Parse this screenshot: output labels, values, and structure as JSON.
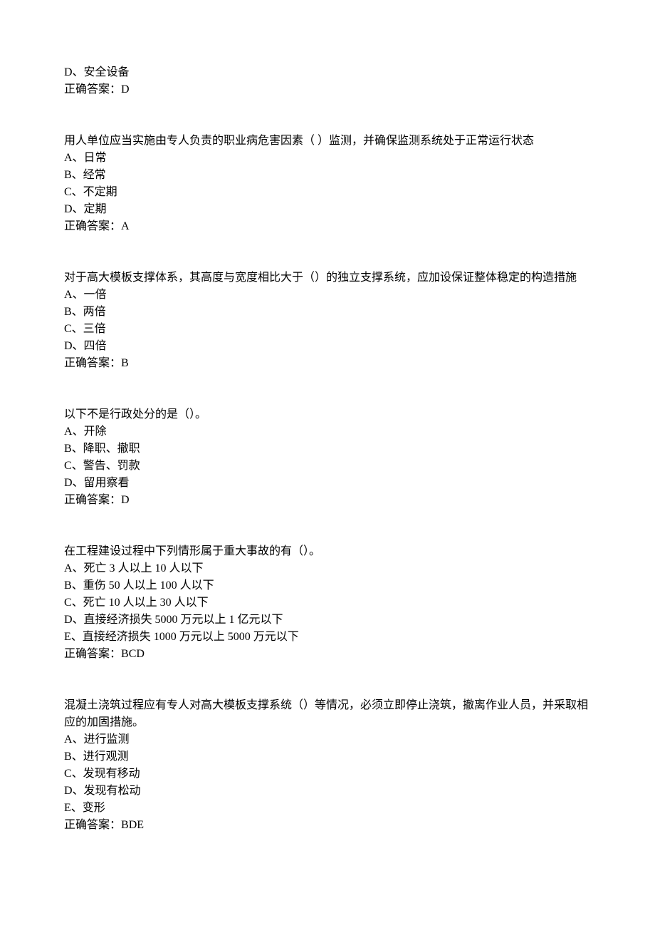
{
  "fragment": {
    "options": [
      "D、安全设备"
    ],
    "answer_label": "正确答案：",
    "answer_value": "D"
  },
  "questions": [
    {
      "stem": "用人单位应当实施由专人负责的职业病危害因素（ ）监测，并确保监测系统处于正常运行状态",
      "options": [
        "A、日常",
        "B、经常",
        "C、不定期",
        "D、定期"
      ],
      "answer_label": "正确答案：",
      "answer_value": "A"
    },
    {
      "stem": "对于高大模板支撑体系，其高度与宽度相比大于（）的独立支撑系统，应加设保证整体稳定的构造措施",
      "options": [
        "A、一倍",
        "B、两倍",
        "C、三倍",
        "D、四倍"
      ],
      "answer_label": "正确答案：",
      "answer_value": "B"
    },
    {
      "stem": "以下不是行政处分的是（）。",
      "options": [
        "A、开除",
        "B、降职、撤职",
        "C、警告、罚款",
        "D、留用察看"
      ],
      "answer_label": "正确答案：",
      "answer_value": "D"
    },
    {
      "stem": "在工程建设过程中下列情形属于重大事故的有（）。",
      "options": [
        "A、死亡 3 人以上 10 人以下",
        "B、重伤 50 人以上 100 人以下",
        "C、死亡 10 人以上 30 人以下",
        "D、直接经济损失 5000 万元以上 1 亿元以下",
        "E、直接经济损失 1000 万元以上 5000 万元以下"
      ],
      "answer_label": "正确答案：",
      "answer_value": "BCD"
    },
    {
      "stem": "混凝土浇筑过程应有专人对高大模板支撑系统（）等情况，必须立即停止浇筑，撤离作业人员，并采取相应的加固措施。",
      "options": [
        "A、进行监测",
        "B、进行观测",
        "C、发现有移动",
        "D、发现有松动",
        "E、变形"
      ],
      "answer_label": "正确答案：",
      "answer_value": "BDE"
    }
  ]
}
